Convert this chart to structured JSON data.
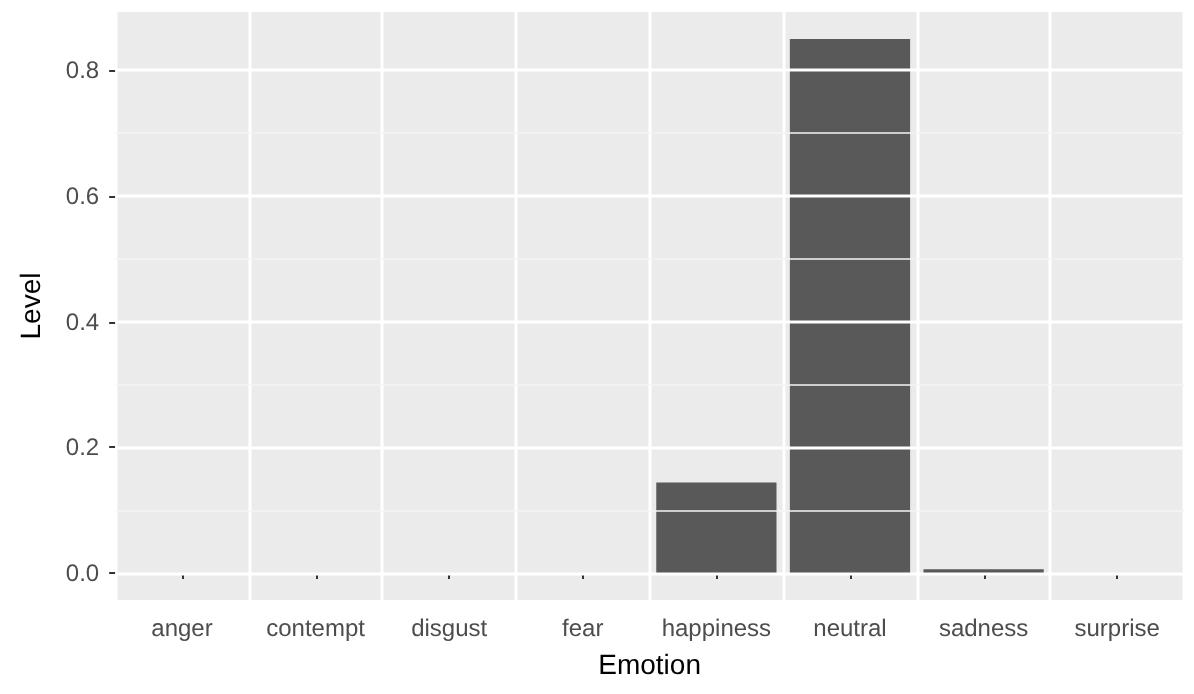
{
  "chart_data": {
    "type": "bar",
    "xlabel": "Emotion",
    "ylabel": "Level",
    "categories": [
      "anger",
      "contempt",
      "disgust",
      "fear",
      "happiness",
      "neutral",
      "sadness",
      "surprise"
    ],
    "values": [
      0,
      0,
      0,
      0,
      0.144,
      0.85,
      0.006,
      0
    ],
    "color": "#595959",
    "ylim": [
      -0.043,
      0.893
    ],
    "yticks": [
      {
        "value": 0,
        "label": "0.0"
      },
      {
        "value": 0.2,
        "label": "0.2"
      },
      {
        "value": 0.4,
        "label": "0.4"
      },
      {
        "value": 0.6,
        "label": "0.6"
      },
      {
        "value": 0.8,
        "label": "0.8"
      }
    ],
    "grid": true
  }
}
